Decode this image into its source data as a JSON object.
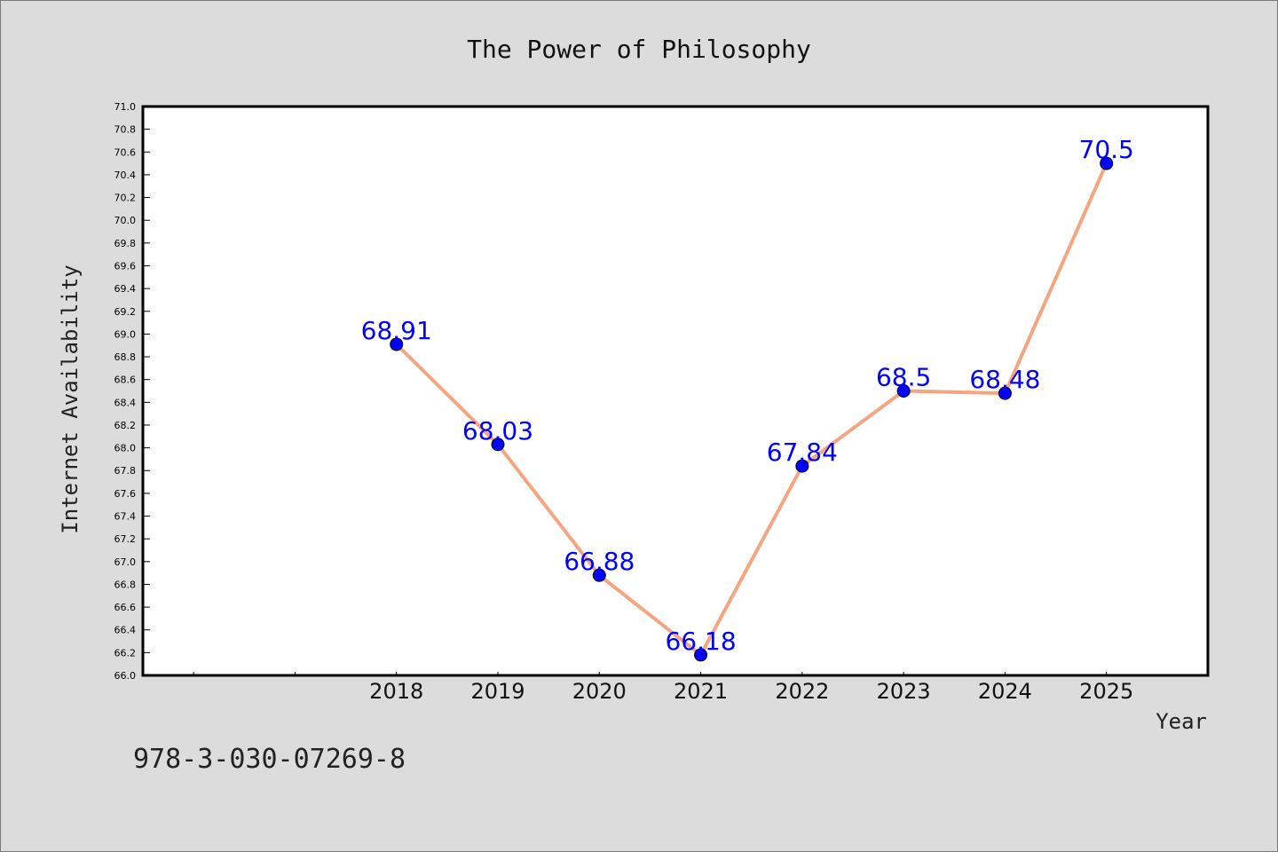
{
  "figure": {
    "background": "#dcdcdc",
    "plot_background": "#ffffff",
    "footer_text": "978-3-030-07269-8"
  },
  "chart_data": {
    "type": "line",
    "title": "The Power of Philosophy",
    "xlabel": "Year",
    "ylabel": "Internet Availability",
    "x": [
      "2018",
      "2019",
      "2020",
      "2021",
      "2022",
      "2023",
      "2024",
      "2025"
    ],
    "series": [
      {
        "values": [
          68.91,
          68.03,
          66.88,
          66.18,
          67.84,
          68.5,
          68.48,
          70.5
        ],
        "data_labels": [
          "68.91",
          "68.03",
          "66.88",
          "66.18",
          "67.84",
          "68.5",
          "68.48",
          "70.5"
        ],
        "line_color": "#f4a582",
        "marker_color": "#0000ff",
        "label_color": "#0000ff"
      }
    ],
    "x_slots_before_first_category": 2,
    "ylim": [
      66.0,
      71.0
    ],
    "ytick_step": 0.2,
    "grid": false,
    "legend": "none"
  }
}
